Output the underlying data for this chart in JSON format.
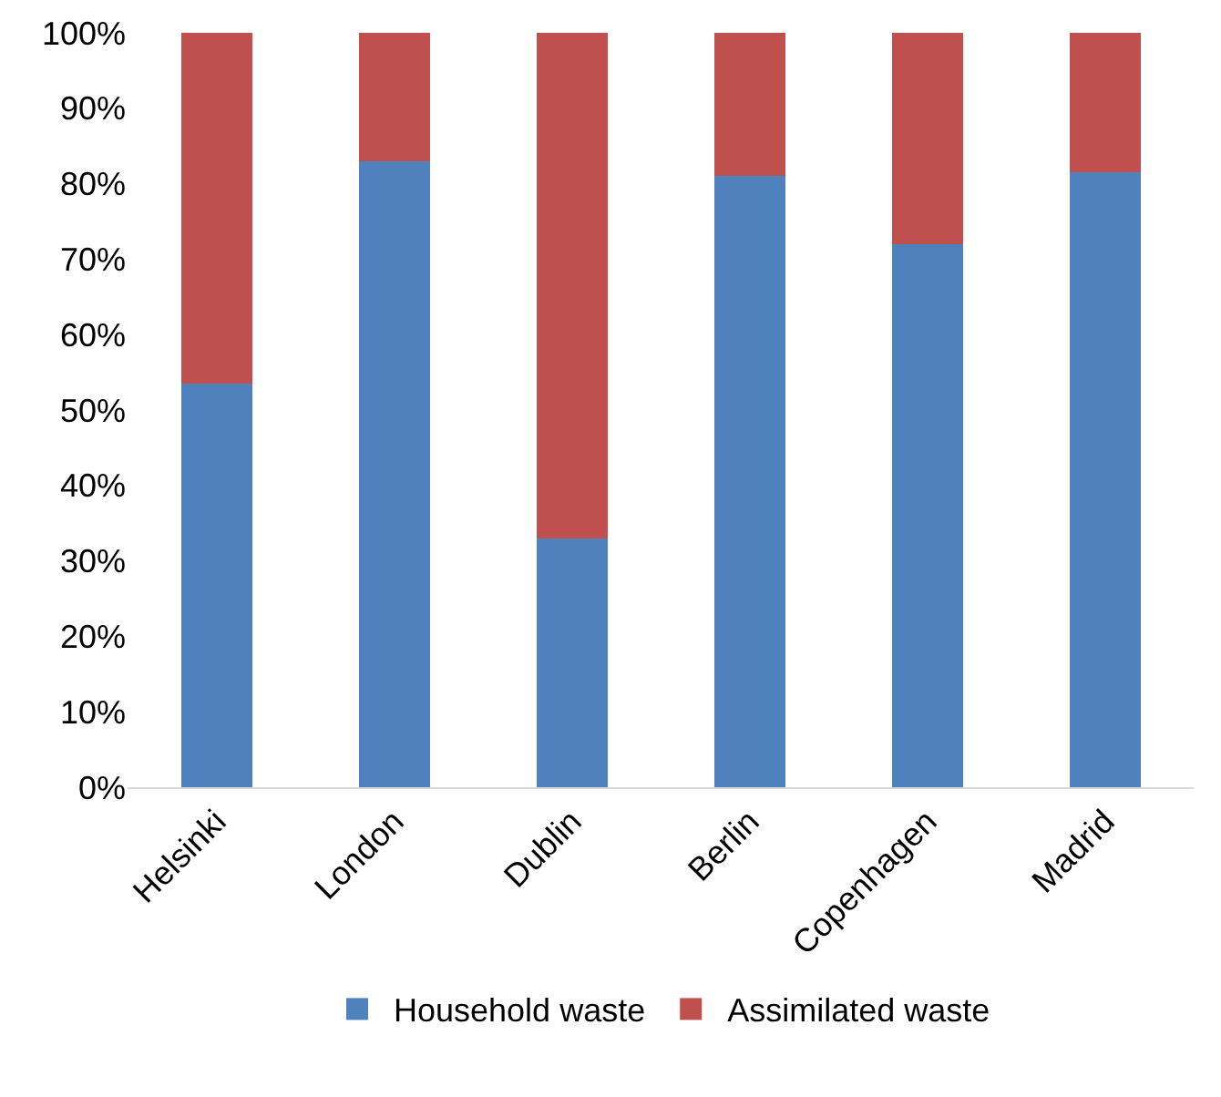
{
  "chart_data": {
    "type": "bar",
    "stacked": true,
    "categories": [
      "Helsinki",
      "London",
      "Dublin",
      "Berlin",
      "Copenhagen",
      "Madrid"
    ],
    "series": [
      {
        "name": "Household waste",
        "color": "#4f81bd",
        "values": [
          53.5,
          83,
          33,
          81,
          72,
          81.5
        ]
      },
      {
        "name": "Assimilated waste",
        "color": "#c0504d",
        "values": [
          46.5,
          17,
          67,
          19,
          28,
          18.5
        ]
      }
    ],
    "ylim": [
      0,
      100
    ],
    "yticks": [
      {
        "value": 0,
        "label": "0%"
      },
      {
        "value": 10,
        "label": "10%"
      },
      {
        "value": 20,
        "label": "20%"
      },
      {
        "value": 30,
        "label": "30%"
      },
      {
        "value": 40,
        "label": "40%"
      },
      {
        "value": 50,
        "label": "50%"
      },
      {
        "value": 60,
        "label": "60%"
      },
      {
        "value": 70,
        "label": "70%"
      },
      {
        "value": 80,
        "label": "80%"
      },
      {
        "value": 90,
        "label": "90%"
      },
      {
        "value": 100,
        "label": "100%"
      }
    ],
    "grid": false,
    "legend": "bottom"
  }
}
